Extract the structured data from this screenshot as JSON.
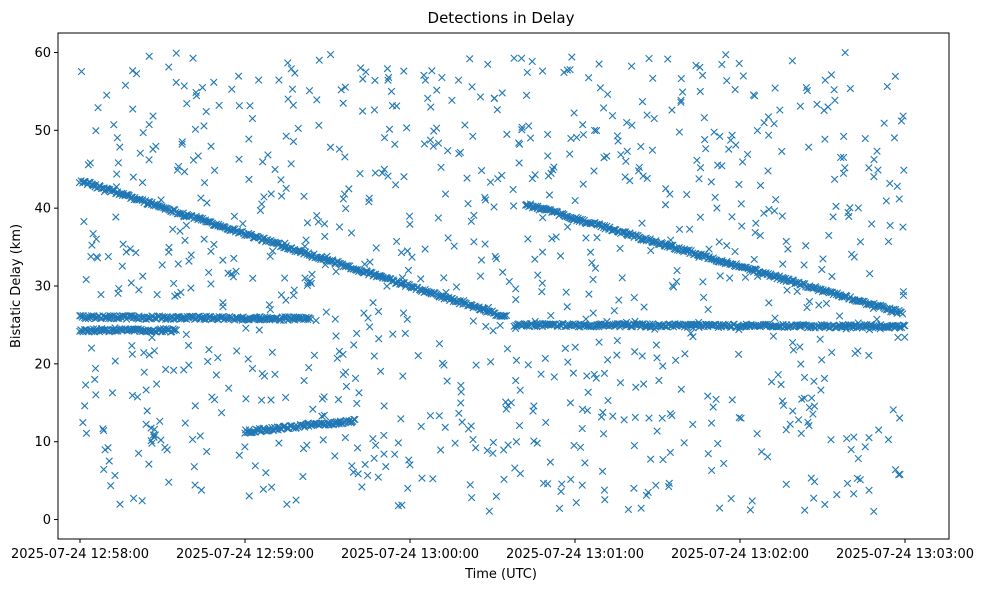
{
  "chart_data": {
    "type": "scatter",
    "title": "Detections in Delay",
    "xlabel": "Time (UTC)",
    "ylabel": "Bistatic Delay (km)",
    "marker": "x",
    "color": "#1f77b4",
    "x_unit": "time",
    "xlim": [
      "2025-07-24 12:57:52",
      "2025-07-24 13:03:16"
    ],
    "ylim": [
      -2.5,
      62.5
    ],
    "xticks": [
      "2025-07-24 12:58:00",
      "2025-07-24 12:59:00",
      "2025-07-24 13:00:00",
      "2025-07-24 13:01:00",
      "2025-07-24 13:02:00",
      "2025-07-24 13:03:00"
    ],
    "yticks": [
      0,
      10,
      20,
      30,
      40,
      50,
      60
    ],
    "grid": false,
    "legend": "none",
    "series": [
      {
        "description": "descending track 1 (dense)",
        "start": {
          "x": "2025-07-24 12:58:00",
          "y": 43.5
        },
        "end": {
          "x": "2025-07-24 13:00:35",
          "y": 26.0
        },
        "samples": [
          {
            "x": "2025-07-24 12:58:05",
            "y": 41.0
          },
          {
            "x": "2025-07-24 12:58:30",
            "y": 38.5
          },
          {
            "x": "2025-07-24 12:59:00",
            "y": 35.5
          },
          {
            "x": "2025-07-24 12:59:30",
            "y": 32.5
          },
          {
            "x": "2025-07-24 13:00:00",
            "y": 28.5
          },
          {
            "x": "2025-07-24 13:00:30",
            "y": 26.5
          }
        ]
      },
      {
        "description": "descending track 2 (dense)",
        "start": {
          "x": "2025-07-24 13:00:42",
          "y": 40.5
        },
        "end": {
          "x": "2025-07-24 13:02:59",
          "y": 26.5
        },
        "samples": [
          {
            "x": "2025-07-24 13:01:00",
            "y": 38.8
          },
          {
            "x": "2025-07-24 13:01:30",
            "y": 35.5
          },
          {
            "x": "2025-07-24 13:02:00",
            "y": 32.0
          },
          {
            "x": "2025-07-24 13:02:30",
            "y": 29.0
          }
        ]
      },
      {
        "description": "horizontal track near 26 km",
        "start": {
          "x": "2025-07-24 12:58:00",
          "y": 26.0
        },
        "end": {
          "x": "2025-07-24 12:59:24",
          "y": 25.8
        }
      },
      {
        "description": "horizontal track near 24.5 km",
        "start": {
          "x": "2025-07-24 12:58:00",
          "y": 24.3
        },
        "end": {
          "x": "2025-07-24 12:58:35",
          "y": 24.3
        }
      },
      {
        "description": "track near 25 km (second half)",
        "start": {
          "x": "2025-07-24 13:00:38",
          "y": 25.0
        },
        "end": {
          "x": "2025-07-24 13:03:00",
          "y": 24.8
        }
      },
      {
        "description": "ascending short track near 12 km",
        "start": {
          "x": "2025-07-24 12:59:00",
          "y": 11.3
        },
        "end": {
          "x": "2025-07-24 12:59:40",
          "y": 12.7
        }
      },
      {
        "description": "sparse clutter",
        "x_range": [
          "2025-07-24 12:58:00",
          "2025-07-24 13:03:00"
        ],
        "y_range": [
          1,
          60
        ],
        "approx_count": 950
      }
    ]
  }
}
